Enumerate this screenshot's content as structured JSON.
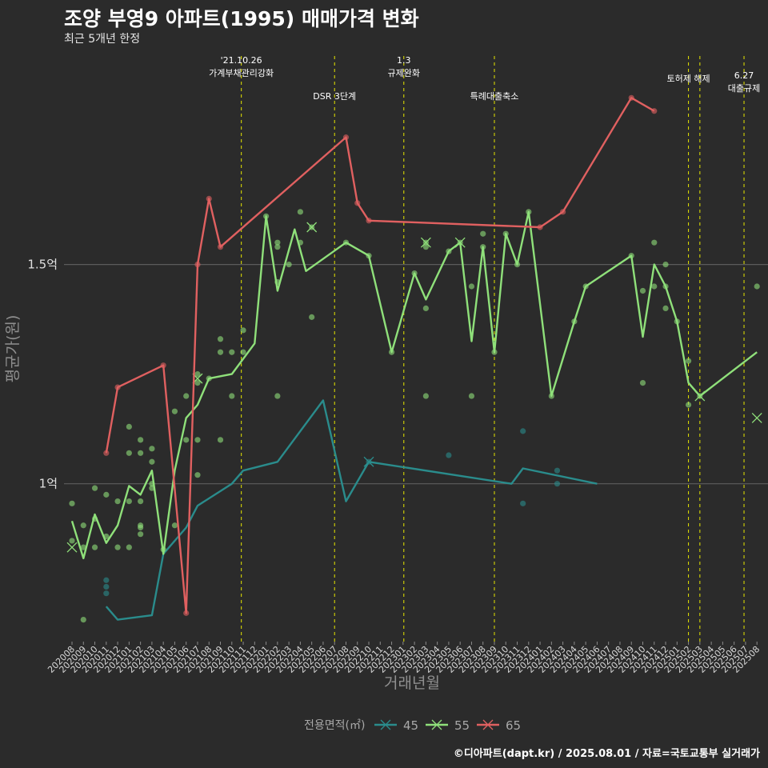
{
  "header": {
    "title": "조양 부영9 아파트(1995) 매매가격 변화",
    "subtitle": "최근 5개년 한정",
    "caption": "©디아파트(dapt.kr) / 2025.08.01 / 자료=국토교통부 실거래가"
  },
  "chart_data": {
    "type": "line",
    "xlabel": "거래년월",
    "ylabel": "평균가(원)",
    "y_unit": "억",
    "ylim": [
      0.64,
      1.99
    ],
    "y_ticks": [
      {
        "value": 1.0,
        "label": "1억"
      },
      {
        "value": 1.5,
        "label": "1.5억"
      }
    ],
    "grid": true,
    "legend": {
      "position": "bottom",
      "title": "전용면적(㎡)"
    },
    "months": [
      "202008",
      "202009",
      "202010",
      "202011",
      "202012",
      "202101",
      "202102",
      "202103",
      "202104",
      "202105",
      "202106",
      "202107",
      "202108",
      "202109",
      "202110",
      "202111",
      "202112",
      "202201",
      "202202",
      "202203",
      "202204",
      "202205",
      "202206",
      "202207",
      "202208",
      "202209",
      "202210",
      "202211",
      "202212",
      "202301",
      "202302",
      "202303",
      "202304",
      "202305",
      "202306",
      "202307",
      "202308",
      "202309",
      "202310",
      "202311",
      "202312",
      "202401",
      "202402",
      "202403",
      "202404",
      "202405",
      "202406",
      "202407",
      "202408",
      "202409",
      "202410",
      "202411",
      "202412",
      "202501",
      "202502",
      "202503",
      "202504",
      "202505",
      "202506",
      "202507",
      "202508"
    ],
    "events": [
      {
        "date": "2021-10-26",
        "label": "'21.10.26\n가계부채관리강화"
      },
      {
        "date": "2022-07",
        "label": "DSR 3단계"
      },
      {
        "date": "2023-01-03",
        "label": "1.3\n규제완화"
      },
      {
        "date": "2023-09",
        "label": "특례대출축소"
      },
      {
        "date": "2025-02",
        "label": "토허제 해제"
      },
      {
        "date": "2025-03",
        "label": ""
      },
      {
        "date": "2025-06-27",
        "label": "6.27\n대출규제"
      }
    ],
    "series": [
      {
        "name": "45",
        "color": "#2a8c8c",
        "line": [
          [
            3.0,
            0.72
          ],
          [
            4.0,
            0.69
          ],
          [
            7.0,
            0.7
          ],
          [
            8.0,
            0.84
          ],
          [
            10.0,
            0.9
          ],
          [
            11.0,
            0.95
          ],
          [
            14.0,
            1.0
          ],
          [
            15.0,
            1.03
          ],
          [
            18.0,
            1.05
          ],
          [
            22.0,
            1.19
          ],
          [
            24.0,
            0.96
          ],
          [
            26.0,
            1.05
          ],
          [
            38.5,
            1.0
          ],
          [
            39.5,
            1.035
          ],
          [
            46.0,
            1.0
          ]
        ],
        "points": [
          [
            3.0,
            0.765
          ],
          [
            3.0,
            0.78
          ],
          [
            3.0,
            0.75
          ],
          [
            26.0,
            1.05
          ],
          [
            33.0,
            1.065
          ],
          [
            39.5,
            1.12
          ],
          [
            39.5,
            0.955
          ],
          [
            42.5,
            1.03
          ],
          [
            42.5,
            1.0
          ]
        ],
        "crosses": [
          [
            26.0,
            1.05
          ]
        ]
      },
      {
        "name": "55",
        "color": "#8fe07a",
        "line": [
          [
            0.0,
            0.915
          ],
          [
            1.0,
            0.83
          ],
          [
            2.0,
            0.93
          ],
          [
            3.0,
            0.865
          ],
          [
            4.0,
            0.905
          ],
          [
            5.0,
            0.995
          ],
          [
            6.0,
            0.975
          ],
          [
            7.0,
            1.03
          ],
          [
            8.0,
            0.84
          ],
          [
            9.0,
            1.03
          ],
          [
            10.0,
            1.15
          ],
          [
            11.0,
            1.18
          ],
          [
            12.0,
            1.24
          ],
          [
            14.0,
            1.25
          ],
          [
            16.0,
            1.32
          ],
          [
            17.0,
            1.61
          ],
          [
            18.0,
            1.44
          ],
          [
            19.5,
            1.58
          ],
          [
            20.5,
            1.485
          ],
          [
            24.0,
            1.55
          ],
          [
            26.0,
            1.52
          ],
          [
            28.0,
            1.3
          ],
          [
            30.0,
            1.48
          ],
          [
            31.0,
            1.42
          ],
          [
            33.0,
            1.53
          ],
          [
            34.0,
            1.55
          ],
          [
            35.0,
            1.325
          ],
          [
            36.0,
            1.54
          ],
          [
            37.0,
            1.3
          ],
          [
            38.0,
            1.57
          ],
          [
            39.0,
            1.5
          ],
          [
            40.0,
            1.62
          ],
          [
            42.0,
            1.2
          ],
          [
            44.0,
            1.37
          ],
          [
            45.0,
            1.45
          ],
          [
            49.0,
            1.52
          ],
          [
            50.0,
            1.335
          ],
          [
            51.0,
            1.5
          ],
          [
            52.0,
            1.45
          ],
          [
            53.0,
            1.37
          ],
          [
            54.0,
            1.23
          ],
          [
            55.0,
            1.2
          ],
          [
            60.0,
            1.3
          ]
        ],
        "points": [
          [
            0.0,
            0.955
          ],
          [
            0.0,
            0.87
          ],
          [
            1.0,
            0.855
          ],
          [
            1.0,
            0.905
          ],
          [
            1.0,
            0.69
          ],
          [
            2.0,
            0.99
          ],
          [
            2.0,
            0.855
          ],
          [
            2.0,
            0.92
          ],
          [
            3.0,
            0.975
          ],
          [
            3.0,
            0.88
          ],
          [
            4.0,
            0.96
          ],
          [
            4.0,
            0.855
          ],
          [
            5.0,
            1.13
          ],
          [
            5.0,
            1.07
          ],
          [
            5.0,
            0.96
          ],
          [
            5.0,
            0.855
          ],
          [
            6.0,
            1.1
          ],
          [
            6.0,
            1.07
          ],
          [
            6.0,
            0.96
          ],
          [
            6.0,
            0.905
          ],
          [
            6.0,
            0.885
          ],
          [
            6.0,
            0.9
          ],
          [
            7.0,
            1.08
          ],
          [
            7.0,
            1.05
          ],
          [
            7.0,
            1.0
          ],
          [
            7.0,
            0.99
          ],
          [
            8.0,
            0.85
          ],
          [
            9.0,
            1.165
          ],
          [
            9.0,
            0.905
          ],
          [
            10.0,
            1.2
          ],
          [
            10.0,
            1.1
          ],
          [
            11.0,
            1.25
          ],
          [
            11.0,
            1.23
          ],
          [
            11.0,
            1.1
          ],
          [
            11.0,
            1.02
          ],
          [
            12.0,
            1.24
          ],
          [
            13.0,
            1.33
          ],
          [
            13.0,
            1.3
          ],
          [
            13.0,
            1.1
          ],
          [
            14.0,
            1.3
          ],
          [
            14.0,
            1.2
          ],
          [
            15.0,
            1.3
          ],
          [
            15.0,
            1.35
          ],
          [
            17.0,
            1.61
          ],
          [
            18.0,
            1.55
          ],
          [
            18.0,
            1.54
          ],
          [
            18.0,
            1.46
          ],
          [
            18.0,
            1.2
          ],
          [
            19.0,
            1.5
          ],
          [
            20.0,
            1.62
          ],
          [
            20.0,
            1.55
          ],
          [
            21.0,
            1.585
          ],
          [
            21.0,
            1.38
          ],
          [
            24.0,
            1.55
          ],
          [
            26.0,
            1.52
          ],
          [
            28.0,
            1.3
          ],
          [
            30.0,
            1.48
          ],
          [
            31.0,
            1.55
          ],
          [
            31.0,
            1.54
          ],
          [
            31.0,
            1.4
          ],
          [
            31.0,
            1.2
          ],
          [
            33.0,
            1.53
          ],
          [
            34.0,
            1.55
          ],
          [
            35.0,
            1.45
          ],
          [
            35.0,
            1.2
          ],
          [
            36.0,
            1.57
          ],
          [
            36.0,
            1.54
          ],
          [
            37.0,
            1.3
          ],
          [
            38.0,
            1.57
          ],
          [
            39.0,
            1.5
          ],
          [
            40.0,
            1.62
          ],
          [
            42.0,
            1.2
          ],
          [
            44.0,
            1.37
          ],
          [
            45.0,
            1.45
          ],
          [
            49.0,
            1.52
          ],
          [
            50.0,
            1.44
          ],
          [
            50.0,
            1.23
          ],
          [
            51.0,
            1.55
          ],
          [
            51.0,
            1.45
          ],
          [
            52.0,
            1.5
          ],
          [
            52.0,
            1.45
          ],
          [
            52.0,
            1.4
          ],
          [
            53.0,
            1.37
          ],
          [
            54.0,
            1.28
          ],
          [
            54.0,
            1.18
          ],
          [
            55.0,
            1.2
          ],
          [
            60.0,
            1.45
          ]
        ],
        "crosses": [
          [
            0.0,
            0.855
          ],
          [
            11.0,
            1.24
          ],
          [
            21.0,
            1.585
          ],
          [
            31.0,
            1.55
          ],
          [
            34.0,
            1.55
          ],
          [
            55.0,
            1.2
          ],
          [
            60.0,
            1.15
          ]
        ]
      },
      {
        "name": "65",
        "color": "#e06060",
        "line": [
          [
            3.0,
            1.07
          ],
          [
            4.0,
            1.22
          ],
          [
            8.0,
            1.27
          ],
          [
            10.0,
            0.705
          ],
          [
            11.0,
            1.5
          ],
          [
            12.0,
            1.65
          ],
          [
            13.0,
            1.54
          ],
          [
            24.0,
            1.79
          ],
          [
            25.0,
            1.64
          ],
          [
            26.0,
            1.6
          ],
          [
            41.0,
            1.585
          ],
          [
            43.0,
            1.62
          ],
          [
            49.0,
            1.88
          ],
          [
            51.0,
            1.85
          ]
        ],
        "points": [
          [
            3.0,
            1.07
          ],
          [
            4.0,
            1.22
          ],
          [
            8.0,
            1.27
          ],
          [
            10.0,
            0.705
          ],
          [
            11.0,
            1.5
          ],
          [
            12.0,
            1.65
          ],
          [
            13.0,
            1.54
          ],
          [
            24.0,
            1.79
          ],
          [
            25.0,
            1.64
          ],
          [
            26.0,
            1.6
          ],
          [
            41.0,
            1.585
          ],
          [
            43.0,
            1.62
          ],
          [
            49.0,
            1.88
          ],
          [
            51.0,
            1.85
          ]
        ],
        "crosses": []
      }
    ]
  }
}
